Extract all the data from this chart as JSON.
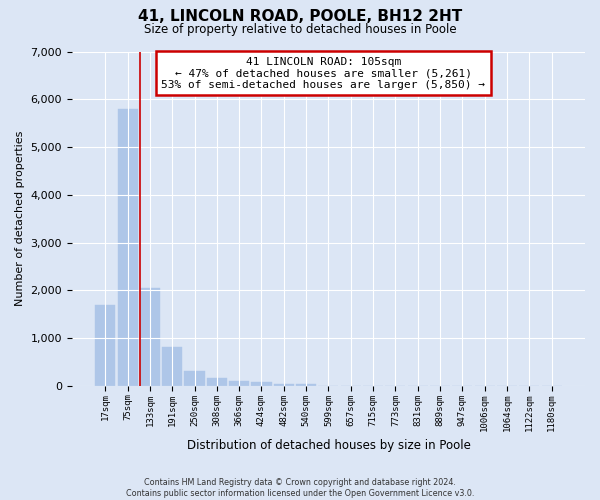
{
  "title": "41, LINCOLN ROAD, POOLE, BH12 2HT",
  "subtitle": "Size of property relative to detached houses in Poole",
  "xlabel": "Distribution of detached houses by size in Poole",
  "ylabel": "Number of detached properties",
  "bin_labels": [
    "17sqm",
    "75sqm",
    "133sqm",
    "191sqm",
    "250sqm",
    "308sqm",
    "366sqm",
    "424sqm",
    "482sqm",
    "540sqm",
    "599sqm",
    "657sqm",
    "715sqm",
    "773sqm",
    "831sqm",
    "889sqm",
    "947sqm",
    "1006sqm",
    "1064sqm",
    "1122sqm",
    "1180sqm"
  ],
  "bar_values": [
    1700,
    5800,
    2050,
    820,
    310,
    170,
    110,
    90,
    50,
    35,
    0,
    0,
    0,
    0,
    0,
    0,
    0,
    0,
    0,
    0,
    0
  ],
  "bar_color": "#aec6e8",
  "annotation_text": "41 LINCOLN ROAD: 105sqm\n← 47% of detached houses are smaller (5,261)\n53% of semi-detached houses are larger (5,850) →",
  "annotation_box_color": "#ffffff",
  "annotation_box_edge_color": "#cc0000",
  "vline_color": "#cc0000",
  "vline_x": 1.55,
  "ylim": [
    0,
    7000
  ],
  "yticks": [
    0,
    1000,
    2000,
    3000,
    4000,
    5000,
    6000,
    7000
  ],
  "footnote": "Contains HM Land Registry data © Crown copyright and database right 2024.\nContains public sector information licensed under the Open Government Licence v3.0.",
  "bg_color": "#dce6f5",
  "plot_bg_color": "#dce6f5",
  "grid_color": "#ffffff"
}
